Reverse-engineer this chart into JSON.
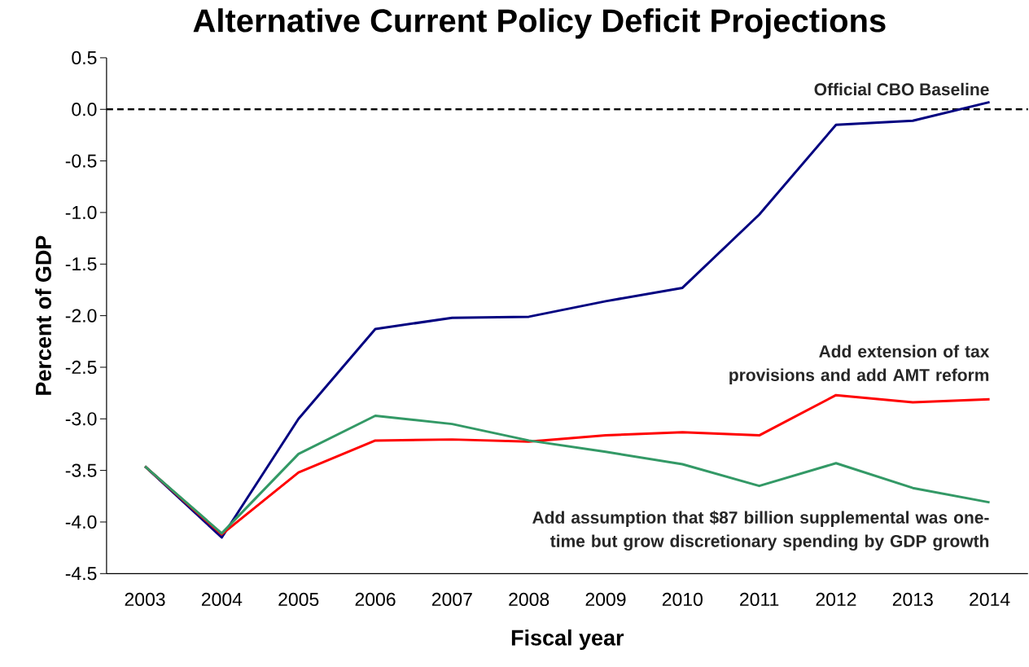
{
  "chart_data": {
    "type": "line",
    "title": "Alternative Current Policy Deficit Projections",
    "xlabel": "Fiscal year",
    "ylabel": "Percent of GDP",
    "categories": [
      "2003",
      "2004",
      "2005",
      "2006",
      "2007",
      "2008",
      "2009",
      "2010",
      "2011",
      "2012",
      "2013",
      "2014"
    ],
    "series": [
      {
        "name": "Official CBO Baseline",
        "color": "#000080",
        "values": [
          -3.46,
          -4.15,
          -3.0,
          -2.13,
          -2.02,
          -2.01,
          -1.86,
          -1.73,
          -1.02,
          -0.15,
          -0.11,
          0.07
        ]
      },
      {
        "name": "Add extension of tax provisions and add AMT reform",
        "color": "#ff0000",
        "values": [
          -3.46,
          -4.12,
          -3.52,
          -3.21,
          -3.2,
          -3.22,
          -3.16,
          -3.13,
          -3.16,
          -2.77,
          -2.84,
          -2.81
        ]
      },
      {
        "name": "Add assumption that $87 billion supplemental was one-time but grow discretionary spending by GDP growth",
        "color": "#339966",
        "values": [
          -3.46,
          -4.11,
          -3.34,
          -2.97,
          -3.05,
          -3.21,
          -3.32,
          -3.44,
          -3.65,
          -3.43,
          -3.67,
          -3.81
        ]
      }
    ],
    "ylim": [
      -4.5,
      0.5
    ],
    "yticks": [
      0.5,
      {
        "value": 0,
        "label": "0.0"
      },
      -0.5,
      {
        "value": -1,
        "label": "-1.0"
      },
      -1.5,
      {
        "value": -2,
        "label": "-2.0"
      },
      -2.5,
      {
        "value": -3,
        "label": "-3.0"
      },
      -3.5,
      {
        "value": -4,
        "label": "-4.0"
      },
      -4.5
    ],
    "ref_lines": [
      {
        "axis": "y",
        "value": 0,
        "color": "#000000",
        "line_style": "dashed"
      }
    ],
    "marker": "none",
    "line_style": "solid"
  }
}
